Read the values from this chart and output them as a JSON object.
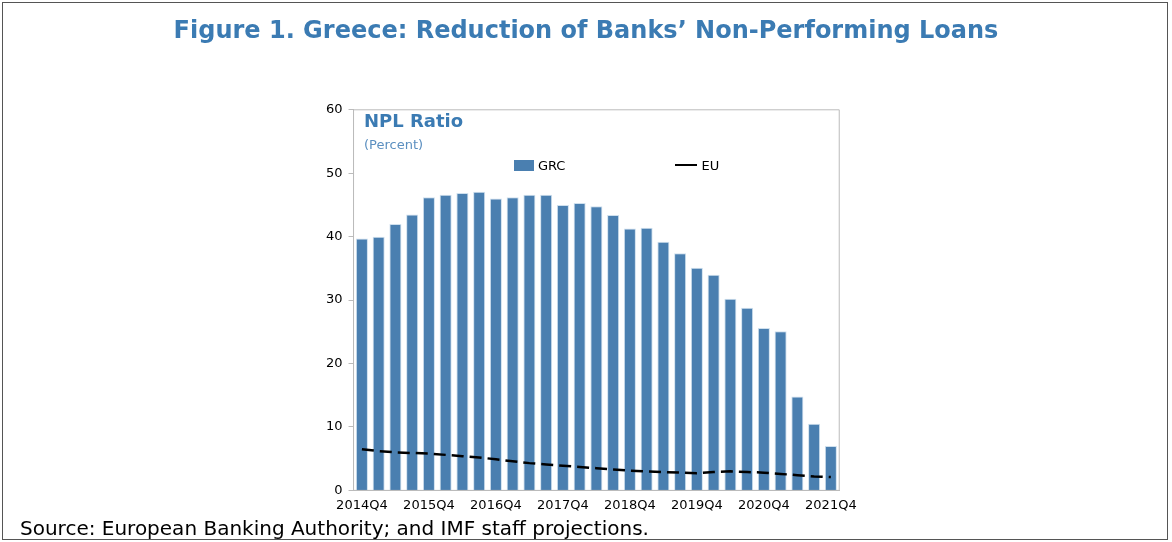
{
  "chart_data": {
    "type": "bar",
    "title": "Figure 1. Greece: Reduction of Banks’ Non-Performing Loans",
    "subtitle": "NPL Ratio",
    "ylabel": "(Percent)",
    "categories": [
      "2014Q4",
      null,
      null,
      null,
      "2015Q4",
      null,
      null,
      null,
      "2016Q4",
      null,
      null,
      null,
      "2017Q4",
      null,
      null,
      null,
      "2018Q4",
      null,
      null,
      null,
      "2019Q4",
      null,
      null,
      null,
      "2020Q4",
      null,
      null,
      null,
      "2021Q4"
    ],
    "series": [
      {
        "name": "GRC",
        "color": "#4a7fb0",
        "values": [
          39.7,
          40,
          42,
          43.5,
          46.2,
          46.6,
          46.9,
          47.1,
          46,
          46.2,
          46.6,
          46.6,
          45,
          45.3,
          44.8,
          43.4,
          41.3,
          41.4,
          39.2,
          37.4,
          35.1,
          34,
          30.2,
          28.8,
          25.6,
          25.1,
          14.8,
          10.5,
          7
        ]
      },
      {
        "name": "EU",
        "type": "line",
        "color": "#000000",
        "line_style": "dashed",
        "marker": "none",
        "values": [
          6.5,
          6.2,
          6.0,
          5.9,
          5.8,
          5.6,
          5.4,
          5.2,
          4.9,
          4.6,
          4.3,
          4.1,
          3.9,
          3.7,
          3.5,
          3.3,
          3.1,
          3.0,
          2.9,
          2.8,
          2.7,
          2.9,
          3.0,
          2.9,
          2.8,
          2.6,
          2.4,
          2.2,
          2.1
        ]
      }
    ],
    "ylim": [
      0,
      60
    ],
    "yticks": [
      0,
      10,
      20,
      30,
      40,
      50,
      60
    ],
    "legend": "top",
    "annotations": [
      "Source: European Banking Authority; and IMF staff projections."
    ]
  }
}
